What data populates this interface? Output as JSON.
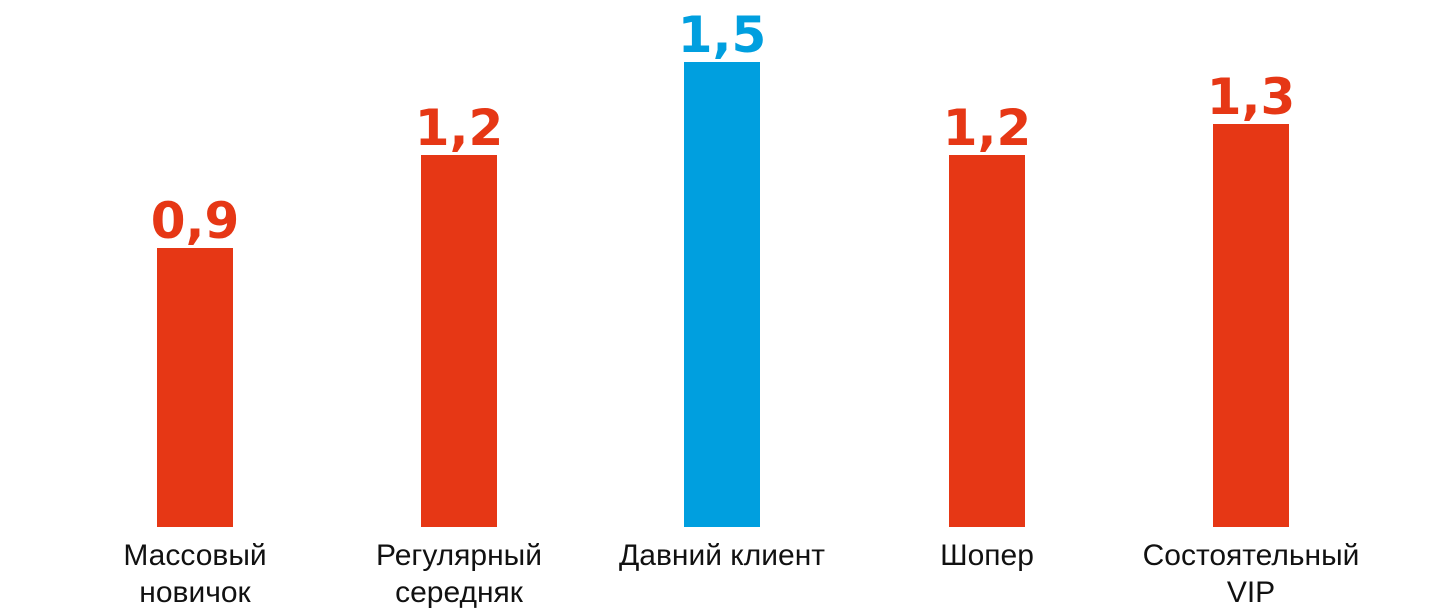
{
  "chart_data": {
    "type": "bar",
    "categories": [
      [
        "Массовый",
        "новичок"
      ],
      [
        "Регулярный",
        "середняк"
      ],
      [
        "Давний клиент"
      ],
      [
        "Шопер"
      ],
      [
        "Состоятельный",
        "VIP"
      ]
    ],
    "values": [
      0.9,
      1.2,
      1.5,
      1.2,
      1.3
    ],
    "value_labels": [
      "0,9",
      "1,2",
      "1,5",
      "1,2",
      "1,3"
    ],
    "highlight_index": 2,
    "colors": {
      "default": "#e63715",
      "highlight": "#009fdf"
    },
    "ylim": [
      0,
      1.5
    ],
    "grid": false,
    "legend": "none"
  }
}
